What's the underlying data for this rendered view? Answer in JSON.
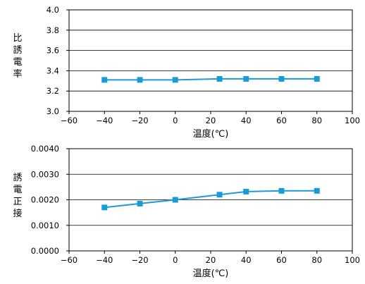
{
  "colors": {
    "series": "#1a9ad6",
    "grid": "#000000",
    "axis": "#000000"
  },
  "chart_data": [
    {
      "type": "line",
      "ylabel": "比誘電率",
      "xlabel": "温度(℃)",
      "xlim": [
        -60,
        100
      ],
      "ylim": [
        3.0,
        4.0
      ],
      "xticks": [
        "−60",
        "−40",
        "−20",
        "0",
        "20",
        "40",
        "60",
        "80",
        "100"
      ],
      "yticks": [
        "3.0",
        "3.2",
        "3.4",
        "3.6",
        "3.8",
        "4.0"
      ],
      "grid": "horizontal",
      "x": [
        -40,
        -20,
        0,
        25,
        40,
        60,
        80
      ],
      "y": [
        3.31,
        3.31,
        3.31,
        3.32,
        3.32,
        3.32,
        3.32
      ]
    },
    {
      "type": "line",
      "ylabel": "誘電正接",
      "xlabel": "温度(℃)",
      "xlim": [
        -60,
        100
      ],
      "ylim": [
        0.0,
        0.004
      ],
      "xticks": [
        "−60",
        "−40",
        "−20",
        "0",
        "20",
        "40",
        "60",
        "80",
        "100"
      ],
      "yticks": [
        "0.0000",
        "0.0010",
        "0.0020",
        "0.0030",
        "0.0040"
      ],
      "grid": "horizontal",
      "x": [
        -40,
        -20,
        0,
        25,
        40,
        60,
        80
      ],
      "y": [
        0.0017,
        0.00185,
        0.002,
        0.0022,
        0.00232,
        0.00235,
        0.00235
      ]
    }
  ]
}
